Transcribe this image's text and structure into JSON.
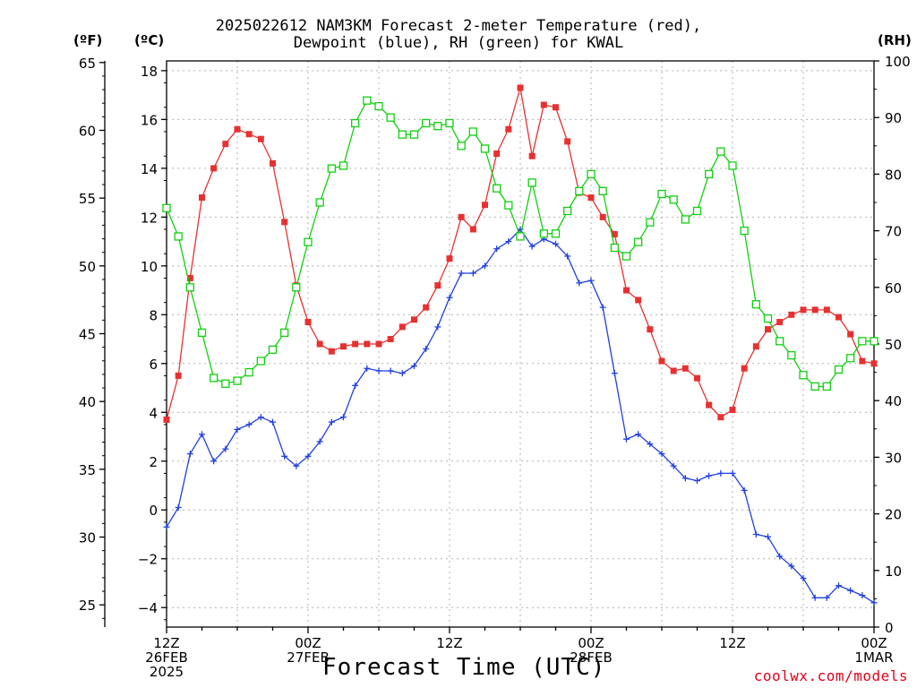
{
  "title_line1": "2025022612 NAM3KM Forecast 2-meter Temperature (red),",
  "title_line2": "Dewpoint (blue), RH (green) for KWAL",
  "credit": "coolwx.com/models",
  "chart_data": {
    "type": "line",
    "title": "2025022612 NAM3KM Forecast 2-meter Temperature (red), Dewpoint (blue), RH (green) for KWAL",
    "xlabel": "Forecast Time (UTC)",
    "x_unit": "hours after 2025-02-26 12Z",
    "xlim": [
      0,
      60
    ],
    "x_ticks": [
      {
        "x": 0,
        "lines": [
          "12Z",
          "26FEB",
          "2025"
        ]
      },
      {
        "x": 12,
        "lines": [
          "00Z",
          "27FEB"
        ]
      },
      {
        "x": 24,
        "lines": [
          "12Z"
        ]
      },
      {
        "x": 36,
        "lines": [
          "00Z",
          "28FEB"
        ]
      },
      {
        "x": 48,
        "lines": [
          "12Z"
        ]
      },
      {
        "x": 60,
        "lines": [
          "00Z",
          "1MAR"
        ]
      }
    ],
    "axes": {
      "fahrenheit": {
        "label": "(ºF)",
        "ticks": [
          25,
          30,
          35,
          40,
          45,
          50,
          55,
          60,
          65
        ]
      },
      "celsius": {
        "label": "(ºC)",
        "range": [
          -4.8,
          18.4
        ],
        "ticks": [
          -4,
          -2,
          0,
          2,
          4,
          6,
          8,
          10,
          12,
          14,
          16,
          18
        ]
      },
      "rh": {
        "label": "(RH)",
        "range": [
          0,
          100
        ],
        "ticks": [
          0,
          10,
          20,
          30,
          40,
          50,
          60,
          70,
          80,
          90,
          100
        ]
      }
    },
    "grid": true,
    "series": [
      {
        "name": "2-meter Temperature",
        "axis": "celsius",
        "color": "#e83030",
        "marker": "filled-square",
        "x": [
          0,
          1,
          2,
          3,
          4,
          5,
          6,
          7,
          8,
          9,
          10,
          11,
          12,
          13,
          14,
          15,
          16,
          17,
          18,
          19,
          20,
          21,
          22,
          23,
          24,
          25,
          26,
          27,
          28,
          29,
          30,
          31,
          32,
          33,
          34,
          35,
          36,
          37,
          38,
          39,
          40,
          41,
          42,
          43,
          44,
          45,
          46,
          47,
          48,
          49,
          50,
          51,
          52,
          53,
          54,
          55,
          56,
          57,
          58,
          59,
          60
        ],
        "values": [
          3.7,
          5.5,
          9.5,
          12.8,
          14.0,
          15.0,
          15.6,
          15.4,
          15.2,
          14.2,
          11.8,
          9.2,
          7.7,
          6.8,
          6.5,
          6.7,
          6.8,
          6.8,
          6.8,
          7.0,
          7.5,
          7.8,
          8.3,
          9.2,
          10.3,
          12.0,
          11.5,
          12.5,
          14.6,
          15.6,
          17.3,
          14.5,
          16.6,
          16.5,
          15.1,
          13.0,
          12.8,
          12.0,
          11.3,
          9.0,
          8.6,
          7.4,
          6.1,
          5.7,
          5.8,
          5.4,
          4.3,
          3.8,
          4.1,
          5.8,
          6.7,
          7.4,
          7.7,
          8.0,
          8.2,
          8.2,
          8.2,
          7.9,
          7.2,
          6.1,
          6.0
        ]
      },
      {
        "name": "Dewpoint",
        "axis": "celsius",
        "color": "#2040e0",
        "marker": "plus",
        "x": [
          0,
          1,
          2,
          3,
          4,
          5,
          6,
          7,
          8,
          9,
          10,
          11,
          12,
          13,
          14,
          15,
          16,
          17,
          18,
          19,
          20,
          21,
          22,
          23,
          24,
          25,
          26,
          27,
          28,
          29,
          30,
          31,
          32,
          33,
          34,
          35,
          36,
          37,
          38,
          39,
          40,
          41,
          42,
          43,
          44,
          45,
          46,
          47,
          48,
          49,
          50,
          51,
          52,
          53,
          54,
          55,
          56,
          57,
          58,
          59,
          60
        ],
        "values": [
          -0.7,
          0.1,
          2.3,
          3.1,
          2.0,
          2.5,
          3.3,
          3.5,
          3.8,
          3.6,
          2.2,
          1.8,
          2.2,
          2.8,
          3.6,
          3.8,
          5.1,
          5.8,
          5.7,
          5.7,
          5.6,
          5.9,
          6.6,
          7.5,
          8.7,
          9.7,
          9.7,
          10.0,
          10.7,
          11.0,
          11.5,
          10.8,
          11.1,
          10.9,
          10.4,
          9.3,
          9.4,
          8.3,
          5.6,
          2.9,
          3.1,
          2.7,
          2.3,
          1.8,
          1.3,
          1.2,
          1.4,
          1.5,
          1.5,
          0.8,
          -1.0,
          -1.1,
          -1.9,
          -2.3,
          -2.8,
          -3.6,
          -3.6,
          -3.1,
          -3.3,
          -3.5,
          -3.8
        ]
      },
      {
        "name": "RH",
        "axis": "rh",
        "color": "#10d010",
        "marker": "open-square",
        "x": [
          0,
          1,
          2,
          3,
          4,
          5,
          6,
          7,
          8,
          9,
          10,
          11,
          12,
          13,
          14,
          15,
          16,
          17,
          18,
          19,
          20,
          21,
          22,
          23,
          24,
          25,
          26,
          27,
          28,
          29,
          30,
          31,
          32,
          33,
          34,
          35,
          36,
          37,
          38,
          39,
          40,
          41,
          42,
          43,
          44,
          45,
          46,
          47,
          48,
          49,
          50,
          51,
          52,
          53,
          54,
          55,
          56,
          57,
          58,
          59,
          60
        ],
        "values": [
          74,
          69,
          60,
          52,
          44,
          43,
          43.5,
          45,
          47,
          49,
          52,
          60,
          68,
          75,
          81,
          81.5,
          89,
          93,
          92,
          90,
          87,
          87,
          89,
          88.5,
          89,
          85,
          87.5,
          84.5,
          77.5,
          74.5,
          69,
          78.5,
          69.5,
          69.5,
          73.5,
          77,
          80,
          77,
          67,
          65.5,
          68,
          71.5,
          76.5,
          75.5,
          72,
          73.5,
          80,
          84,
          81.5,
          70,
          57,
          54.5,
          50.5,
          48,
          44.5,
          42.5,
          42.5,
          45.5,
          47.5,
          50.5,
          50.5
        ]
      }
    ]
  }
}
